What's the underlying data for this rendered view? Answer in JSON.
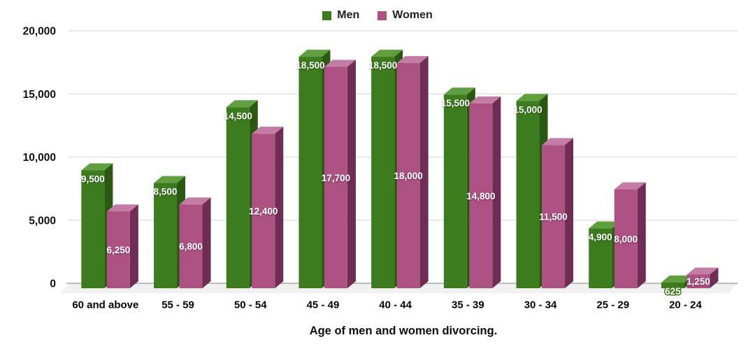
{
  "xlabel": "Age of men and women divorcing.",
  "legend": {
    "position": "top",
    "items": [
      {
        "label": "Men",
        "color": "#3C7B1E"
      },
      {
        "label": "Women",
        "color": "#AC5181"
      }
    ]
  },
  "chart_data": {
    "type": "bar",
    "style": "3d-grouped-columns",
    "title": "",
    "xlabel": "Age of men and women divorcing.",
    "ylabel": "",
    "ylim": [
      0,
      20000
    ],
    "y_ticks": [
      0,
      5000,
      10000,
      15000,
      20000
    ],
    "y_tick_labels": [
      "0",
      "5,000",
      "10,000",
      "15,000",
      "20,000"
    ],
    "grid": true,
    "legend_position": "top",
    "categories": [
      "60 and above",
      "55 - 59",
      "50 - 54",
      "45 - 49",
      "40 - 44",
      "35 - 39",
      "30 - 34",
      "25 - 29",
      "20 - 24"
    ],
    "series": [
      {
        "name": "Men",
        "color": "#3C7B1E",
        "top_color": "#5F9F40",
        "side_color": "#2A5711",
        "values": [
          9500,
          8500,
          14500,
          18500,
          18500,
          15500,
          15000,
          4900,
          625
        ],
        "value_labels": [
          "9,500",
          "8,500",
          "14,500",
          "18,500",
          "18,500",
          "15,500",
          "15,000",
          "4,900",
          "625"
        ]
      },
      {
        "name": "Women",
        "color": "#AC5181",
        "top_color": "#C37CA4",
        "side_color": "#6F2D53",
        "values": [
          6250,
          6800,
          12400,
          17700,
          18000,
          14800,
          11500,
          8000,
          1250
        ],
        "value_labels": [
          "6,250",
          "6,800",
          "12,400",
          "17,700",
          "18,000",
          "14,800",
          "11,500",
          "8,000",
          "1,250"
        ]
      }
    ],
    "colors": {
      "background": "#ffffff",
      "gridline": "#e6e6e6",
      "baseline": "#a8a8a8",
      "floor": "#f1f1f1",
      "axis_text": "#111111",
      "value_text": "#ffffff"
    }
  }
}
